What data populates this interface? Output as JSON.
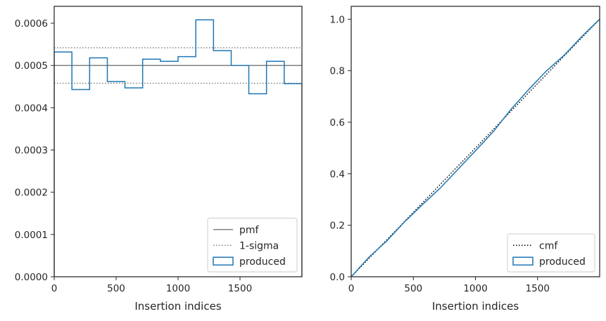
{
  "chart_data": [
    {
      "type": "histogram-step",
      "xlabel": "Insertion indices",
      "ylabel": "",
      "xlim": [
        0,
        2000
      ],
      "ylim": [
        0,
        0.00064
      ],
      "xticks": [
        0,
        500,
        1000,
        1500
      ],
      "xtick_labels": [
        "0",
        "500",
        "1000",
        "1500"
      ],
      "yticks": [
        0,
        0.0001,
        0.0002,
        0.0003,
        0.0004,
        0.0005,
        0.0006
      ],
      "ytick_labels": [
        "0.0000",
        "0.0001",
        "0.0002",
        "0.0003",
        "0.0004",
        "0.0005",
        "0.0006"
      ],
      "grid": false,
      "legend_position": "lower-right",
      "lines": {
        "pmf": {
          "label": "pmf",
          "y": 0.0005,
          "color": "#808080",
          "style": "solid"
        },
        "sigma": {
          "label": "1-sigma",
          "y": [
            0.000458,
            0.000542
          ],
          "color": "#808080",
          "style": "dotted"
        }
      },
      "series": [
        {
          "name": "produced",
          "color": "#1f77b4",
          "bin_edges": [
            0,
            143,
            286,
            429,
            571,
            714,
            857,
            1000,
            1143,
            1286,
            1429,
            1571,
            1714,
            1857,
            2000
          ],
          "values": [
            0.000532,
            0.000443,
            0.000518,
            0.000462,
            0.000447,
            0.000515,
            0.00051,
            0.000521,
            0.000608,
            0.000535,
            0.0005,
            0.000433,
            0.00051,
            0.000457
          ]
        }
      ]
    },
    {
      "type": "line",
      "xlabel": "Insertion indices",
      "ylabel": "",
      "xlim": [
        0,
        2000
      ],
      "ylim": [
        0,
        1.05
      ],
      "xticks": [
        0,
        500,
        1000,
        1500
      ],
      "xtick_labels": [
        "0",
        "500",
        "1000",
        "1500"
      ],
      "yticks": [
        0,
        0.2,
        0.4,
        0.6,
        0.8,
        1.0
      ],
      "ytick_labels": [
        "0.0",
        "0.2",
        "0.4",
        "0.6",
        "0.8",
        "1.0"
      ],
      "grid": false,
      "legend_position": "lower-right",
      "series": [
        {
          "name": "cmf",
          "color": "#000000",
          "style": "dotted",
          "x": [
            0,
            2000
          ],
          "y": [
            0,
            1.0
          ]
        },
        {
          "name": "produced",
          "color": "#1f77b4",
          "style": "solid",
          "x": [
            0,
            143,
            286,
            429,
            571,
            714,
            857,
            1000,
            1143,
            1286,
            1429,
            1571,
            1714,
            1857,
            2000
          ],
          "y": [
            0,
            0.076,
            0.139,
            0.213,
            0.279,
            0.343,
            0.416,
            0.489,
            0.563,
            0.65,
            0.727,
            0.799,
            0.86,
            0.933,
            1.0
          ]
        }
      ]
    }
  ]
}
